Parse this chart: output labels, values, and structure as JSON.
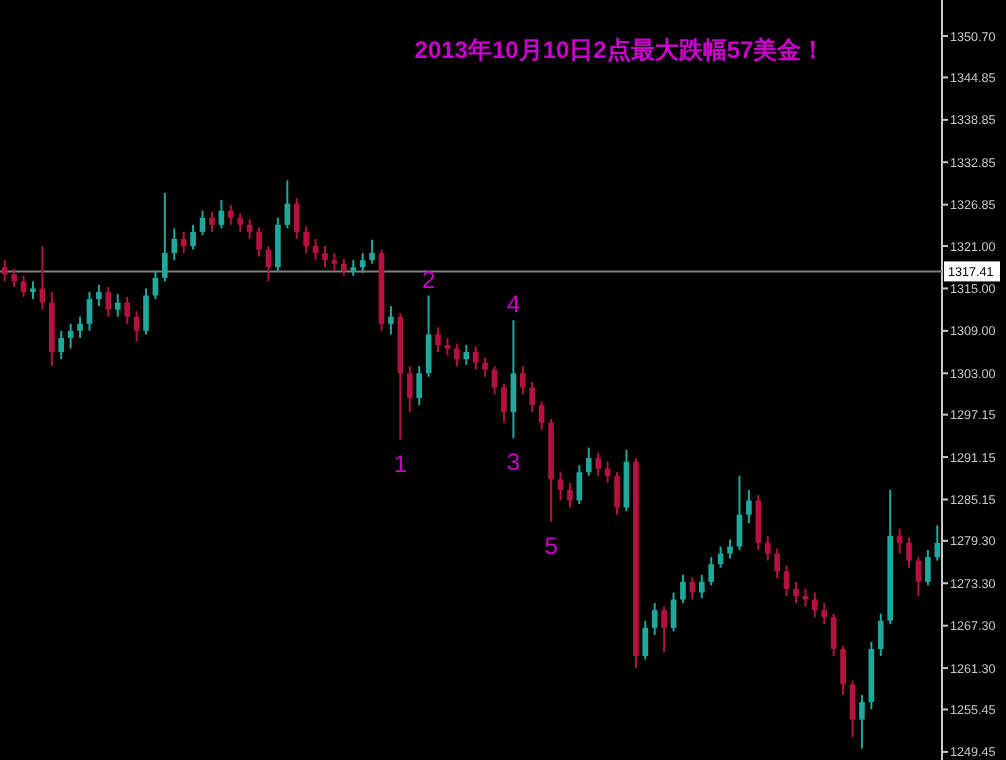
{
  "chart_data": {
    "type": "candlestick",
    "title": "2013年10月10日2点最大跌幅57美金！",
    "categories": [
      null,
      null,
      null,
      null,
      null,
      null,
      null,
      null,
      null,
      null,
      null,
      null,
      null,
      null,
      null,
      null,
      null,
      null,
      null,
      null,
      null,
      null,
      null,
      null,
      null,
      null,
      null,
      null,
      null,
      null,
      null,
      null,
      null,
      null,
      null,
      null,
      null,
      null,
      null,
      null,
      null,
      null,
      null,
      null,
      null,
      null,
      null,
      null,
      null,
      null,
      null,
      null,
      null,
      null,
      null,
      null,
      null,
      null,
      null,
      null,
      null,
      null,
      null,
      null,
      null,
      null,
      null,
      null,
      null,
      null,
      null,
      null,
      null,
      null,
      null,
      null,
      null,
      null,
      null,
      null,
      null,
      null,
      null,
      null,
      null,
      null,
      null,
      null,
      null,
      null,
      null,
      null,
      null,
      null,
      null,
      null,
      null,
      null,
      null,
      null
    ],
    "ohlc": [
      [
        1318,
        1319,
        1316,
        1317
      ],
      [
        1317,
        1317.8,
        1315.2,
        1316
      ],
      [
        1316,
        1316.8,
        1313.8,
        1314.5
      ],
      [
        1314.5,
        1316,
        1313.5,
        1315
      ],
      [
        1315,
        1321,
        1312,
        1313
      ],
      [
        1313,
        1314.5,
        1304,
        1306
      ],
      [
        1306,
        1309,
        1305,
        1308
      ],
      [
        1308,
        1310,
        1306.5,
        1309
      ],
      [
        1309,
        1311,
        1308,
        1310
      ],
      [
        1310,
        1314.5,
        1309,
        1313.5
      ],
      [
        1313.5,
        1315.5,
        1312.5,
        1314.5
      ],
      [
        1314.5,
        1315.2,
        1311,
        1312
      ],
      [
        1312,
        1314.2,
        1311,
        1313
      ],
      [
        1313,
        1313.8,
        1310,
        1311
      ],
      [
        1311,
        1311.8,
        1307.5,
        1309
      ],
      [
        1309,
        1315,
        1308.5,
        1314
      ],
      [
        1314,
        1317.5,
        1313.5,
        1316.5
      ],
      [
        1316.5,
        1328.5,
        1316,
        1320
      ],
      [
        1320,
        1323.5,
        1319,
        1322
      ],
      [
        1322,
        1323,
        1320,
        1321
      ],
      [
        1321,
        1324,
        1320.5,
        1323
      ],
      [
        1323,
        1326,
        1322.5,
        1325
      ],
      [
        1325,
        1325.8,
        1323,
        1324
      ],
      [
        1324,
        1327.5,
        1323.5,
        1326
      ],
      [
        1326,
        1326.8,
        1324,
        1325
      ],
      [
        1325,
        1325.6,
        1323,
        1324
      ],
      [
        1324,
        1324.8,
        1322,
        1323
      ],
      [
        1323,
        1323.6,
        1319.5,
        1320.5
      ],
      [
        1320.5,
        1321,
        1316,
        1318
      ],
      [
        1318,
        1325,
        1317.5,
        1324
      ],
      [
        1324,
        1330.3,
        1323.5,
        1327
      ],
      [
        1327,
        1327.8,
        1322,
        1323
      ],
      [
        1323,
        1323.8,
        1320,
        1321
      ],
      [
        1321,
        1322,
        1319,
        1320
      ],
      [
        1320,
        1321,
        1318,
        1319
      ],
      [
        1319,
        1320,
        1317.5,
        1318.5
      ],
      [
        1318.5,
        1319.2,
        1316.8,
        1317.5
      ],
      [
        1317.5,
        1319,
        1316.8,
        1318
      ],
      [
        1318,
        1320,
        1317.2,
        1319
      ],
      [
        1319,
        1321.9,
        1318.5,
        1320
      ],
      [
        1320,
        1320.5,
        1309,
        1310
      ],
      [
        1310,
        1312.5,
        1308.5,
        1311
      ],
      [
        1311,
        1311.5,
        1293.6,
        1303
      ],
      [
        1303,
        1304,
        1297.5,
        1299.5
      ],
      [
        1299.5,
        1304,
        1298.5,
        1303
      ],
      [
        1303,
        1314,
        1302.5,
        1308.5
      ],
      [
        1308.5,
        1309.5,
        1306,
        1307
      ],
      [
        1307,
        1308,
        1305.5,
        1306.5
      ],
      [
        1306.5,
        1307.2,
        1304,
        1305
      ],
      [
        1305,
        1307,
        1304.2,
        1306
      ],
      [
        1306,
        1306.8,
        1303.5,
        1304.5
      ],
      [
        1304.5,
        1305.2,
        1302.5,
        1303.5
      ],
      [
        1303.5,
        1304,
        1300,
        1301
      ],
      [
        1301,
        1301.5,
        1296,
        1297.5
      ],
      [
        1297.5,
        1310.5,
        1293.8,
        1303
      ],
      [
        1303,
        1304,
        1300,
        1301
      ],
      [
        1301,
        1301.8,
        1297.5,
        1298.5
      ],
      [
        1298.5,
        1299,
        1295,
        1296
      ],
      [
        1296,
        1296.5,
        1282,
        1288
      ],
      [
        1288,
        1289,
        1285,
        1286.5
      ],
      [
        1286.5,
        1287.5,
        1284,
        1285
      ],
      [
        1285,
        1290,
        1284.5,
        1289
      ],
      [
        1289,
        1292.5,
        1288.5,
        1291
      ],
      [
        1291,
        1291.8,
        1288.5,
        1289.5
      ],
      [
        1289.5,
        1290.5,
        1287.5,
        1288.5
      ],
      [
        1288.5,
        1289,
        1283,
        1284
      ],
      [
        1284,
        1292.2,
        1283.5,
        1290.5
      ],
      [
        1290.5,
        1291,
        1261.3,
        1263
      ],
      [
        1263,
        1268,
        1262.5,
        1267
      ],
      [
        1267,
        1270.5,
        1266,
        1269.5
      ],
      [
        1269.5,
        1270,
        1263.5,
        1267
      ],
      [
        1267,
        1272,
        1266.5,
        1271
      ],
      [
        1271,
        1274.5,
        1270.5,
        1273.5
      ],
      [
        1273.5,
        1274.2,
        1271,
        1272
      ],
      [
        1272,
        1274.5,
        1271.2,
        1273.5
      ],
      [
        1273.5,
        1277,
        1273,
        1276
      ],
      [
        1276,
        1278.5,
        1275.5,
        1277.5
      ],
      [
        1277.5,
        1279.5,
        1276.8,
        1278.5
      ],
      [
        1278.5,
        1288.5,
        1278,
        1283
      ],
      [
        1283,
        1286.5,
        1281.8,
        1285
      ],
      [
        1285,
        1285.8,
        1278,
        1279
      ],
      [
        1279,
        1280,
        1276.5,
        1277.5
      ],
      [
        1277.5,
        1278.2,
        1274,
        1275
      ],
      [
        1275,
        1275.8,
        1271.5,
        1272.5
      ],
      [
        1272.5,
        1273.5,
        1270.5,
        1271.5
      ],
      [
        1271.5,
        1272.5,
        1270,
        1271
      ],
      [
        1271,
        1272,
        1268.5,
        1269.5
      ],
      [
        1269.5,
        1270.5,
        1267.5,
        1268.5
      ],
      [
        1268.5,
        1269,
        1263,
        1264
      ],
      [
        1264,
        1264.5,
        1257.5,
        1259
      ],
      [
        1259,
        1259.5,
        1251.5,
        1254
      ],
      [
        1254,
        1257.5,
        1249.9,
        1256.5
      ],
      [
        1256.5,
        1265,
        1255.5,
        1264
      ],
      [
        1264,
        1269,
        1263,
        1268
      ],
      [
        1268,
        1286.5,
        1267.5,
        1280
      ],
      [
        1280,
        1281,
        1277.5,
        1279
      ],
      [
        1279,
        1279.8,
        1275.5,
        1276.5
      ],
      [
        1276.5,
        1277,
        1271.5,
        1273.5
      ],
      [
        1273.5,
        1278,
        1273,
        1277
      ],
      [
        1277,
        1281.5,
        1276.5,
        1279
      ]
    ],
    "colors": [
      "#b5123f",
      "#b5123f",
      "#b5123f",
      "#1fa89c",
      "#b5123f",
      "#b5123f",
      "#1fa89c",
      "#1fa89c",
      "#1fa89c",
      "#1fa89c",
      "#1fa89c",
      "#b5123f",
      "#1fa89c",
      "#b5123f",
      "#b5123f",
      "#1fa89c",
      "#1fa89c",
      "#1fa89c",
      "#1fa89c",
      "#b5123f",
      "#1fa89c",
      "#1fa89c",
      "#b5123f",
      "#1fa89c",
      "#b5123f",
      "#b5123f",
      "#b5123f",
      "#b5123f",
      "#b5123f",
      "#1fa89c",
      "#1fa89c",
      "#b5123f",
      "#b5123f",
      "#b5123f",
      "#b5123f",
      "#b5123f",
      "#b5123f",
      "#1fa89c",
      "#1fa89c",
      "#1fa89c",
      "#b5123f",
      "#1fa89c",
      "#b5123f",
      "#b5123f",
      "#1fa89c",
      "#1fa89c",
      "#b5123f",
      "#b5123f",
      "#b5123f",
      "#1fa89c",
      "#b5123f",
      "#b5123f",
      "#b5123f",
      "#b5123f",
      "#1fa89c",
      "#b5123f",
      "#b5123f",
      "#b5123f",
      "#b5123f",
      "#b5123f",
      "#b5123f",
      "#1fa89c",
      "#1fa89c",
      "#b5123f",
      "#b5123f",
      "#b5123f",
      "#1fa89c",
      "#b5123f",
      "#1fa89c",
      "#1fa89c",
      "#b5123f",
      "#1fa89c",
      "#1fa89c",
      "#b5123f",
      "#1fa89c",
      "#1fa89c",
      "#1fa89c",
      "#1fa89c",
      "#1fa89c",
      "#1fa89c",
      "#b5123f",
      "#b5123f",
      "#b5123f",
      "#b5123f",
      "#b5123f",
      "#b5123f",
      "#b5123f",
      "#b5123f",
      "#b5123f",
      "#b5123f",
      "#b5123f",
      "#1fa89c",
      "#1fa89c",
      "#1fa89c",
      "#1fa89c",
      "#b5123f",
      "#b5123f",
      "#b5123f",
      "#1fa89c",
      "#1fa89c"
    ],
    "ylim": [
      1248.3,
      1355.8
    ],
    "yticks": [
      {
        "value": 1249.45,
        "label": "1249.45"
      },
      {
        "value": 1255.45,
        "label": "1255.45"
      },
      {
        "value": 1261.3,
        "label": "1261.30"
      },
      {
        "value": 1267.3,
        "label": "1267.30"
      },
      {
        "value": 1273.3,
        "label": "1273.30"
      },
      {
        "value": 1279.3,
        "label": "1279.30"
      },
      {
        "value": 1285.15,
        "label": "1285.15"
      },
      {
        "value": 1291.15,
        "label": "1291.15"
      },
      {
        "value": 1297.15,
        "label": "1297.15"
      },
      {
        "value": 1303,
        "label": "1303.00"
      },
      {
        "value": 1309,
        "label": "1309.00"
      },
      {
        "value": 1315,
        "label": "1315.00"
      },
      {
        "value": 1321,
        "label": "1321.00"
      },
      {
        "value": 1326.85,
        "label": "1326.85"
      },
      {
        "value": 1332.85,
        "label": "1332.85"
      },
      {
        "value": 1338.85,
        "label": "1338.85"
      },
      {
        "value": 1344.85,
        "label": "1344.85"
      },
      {
        "value": 1350.7,
        "label": "1350.70"
      }
    ],
    "ref_lines": [
      {
        "axis": "y",
        "value": 1317.41,
        "label": "1317.41",
        "color": "#808080"
      }
    ],
    "annotations": [
      {
        "text": "1",
        "y": 1293.6
      },
      {
        "text": "2",
        "y": 1314
      },
      {
        "text": "3",
        "y": 1293.8
      },
      {
        "text": "4",
        "y": 1310.5
      },
      {
        "text": "5",
        "y": 1282
      }
    ]
  }
}
